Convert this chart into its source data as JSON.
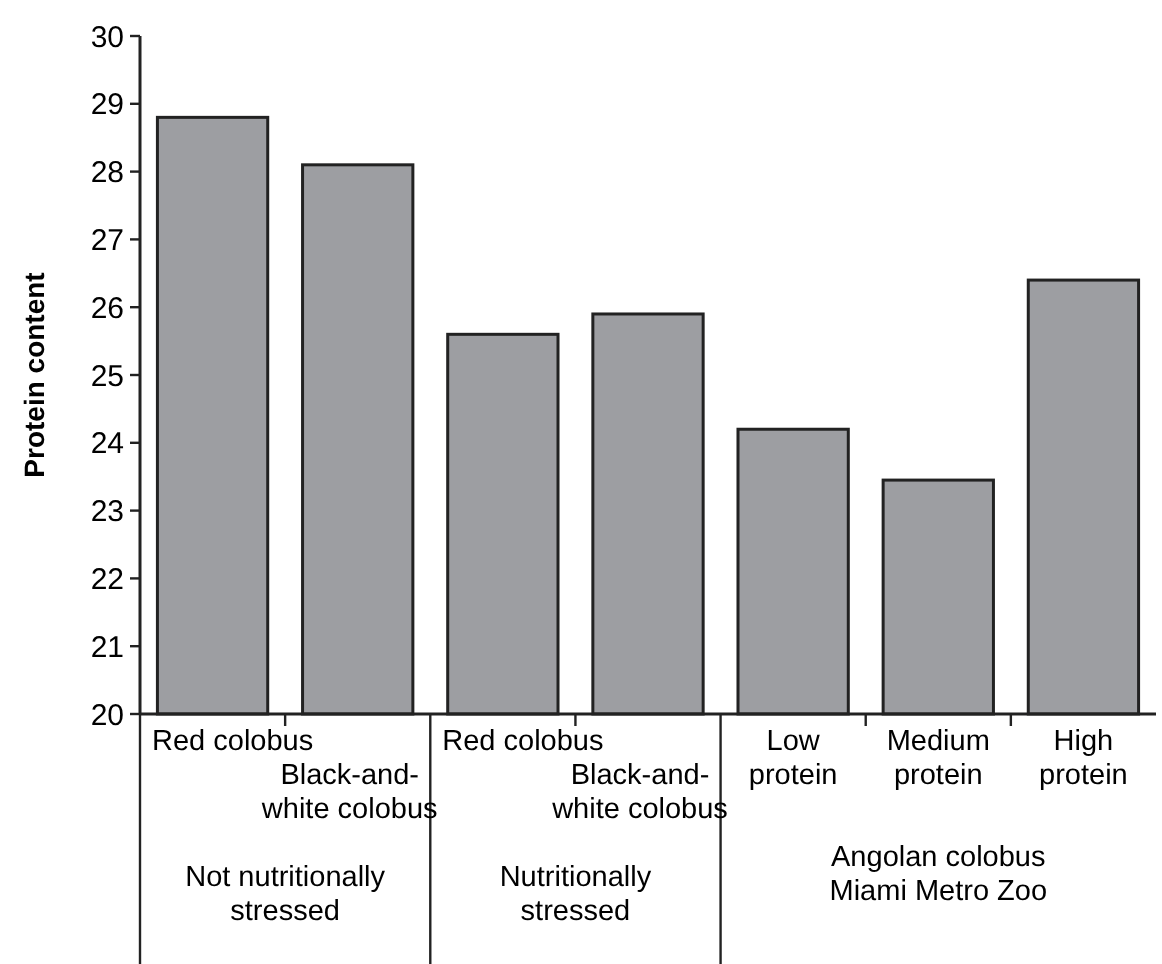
{
  "chart_data": {
    "type": "bar",
    "ylabel": "Protein content",
    "categories": [
      "Red colobus",
      "Black-and-white colobus",
      "Red colobus",
      "Black-and-white colobus",
      "Low protein",
      "Medium protein",
      "High protein"
    ],
    "values": [
      28.8,
      28.1,
      25.6,
      25.9,
      24.2,
      23.45,
      26.4
    ],
    "color": "#9d9ea2",
    "ylim": [
      20,
      30
    ],
    "yticks": [
      20,
      21,
      22,
      23,
      24,
      25,
      26,
      27,
      28,
      29,
      30
    ],
    "annotations": [
      "Not nutritionally stressed",
      "Nutritionally stressed",
      "Angolan colobus Miami Metro Zoo"
    ]
  }
}
